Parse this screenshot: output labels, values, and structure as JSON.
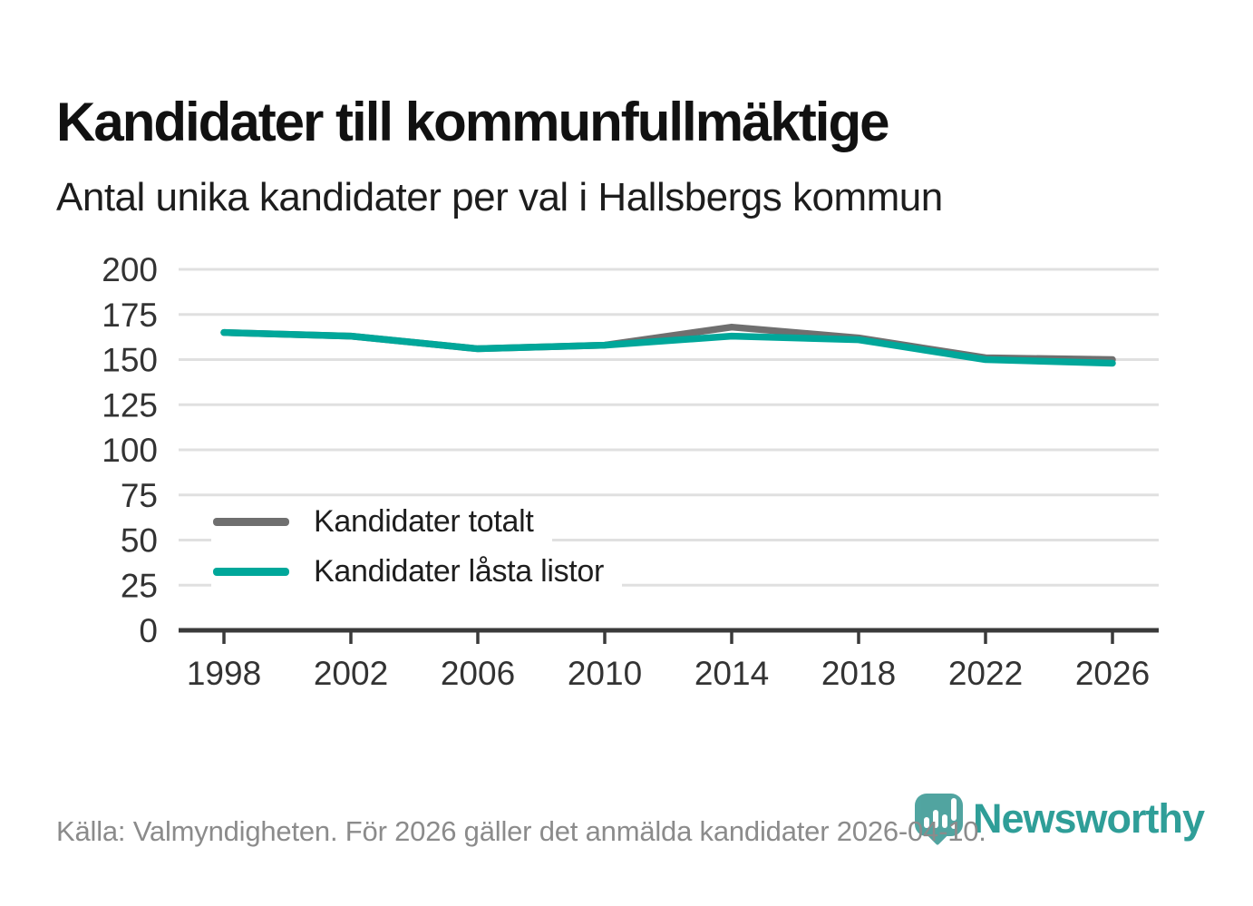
{
  "chart_data": {
    "type": "line",
    "title": "Kandidater till kommunfullmäktige",
    "subtitle": "Antal unika kandidater per val i Hallsbergs kommun",
    "x": [
      1998,
      2002,
      2006,
      2010,
      2014,
      2018,
      2022,
      2026
    ],
    "series": [
      {
        "name": "Kandidater totalt",
        "color": "#6f6f6f",
        "values": [
          165,
          163,
          156,
          158,
          168,
          162,
          151,
          150
        ]
      },
      {
        "name": "Kandidater låsta listor",
        "color": "#00a79a",
        "values": [
          165,
          163,
          156,
          158,
          163,
          161,
          150,
          148
        ]
      }
    ],
    "ylim": [
      0,
      200
    ],
    "yticks": [
      0,
      25,
      50,
      75,
      100,
      125,
      150,
      175,
      200
    ],
    "xticks": [
      1998,
      2002,
      2006,
      2010,
      2014,
      2018,
      2022,
      2026
    ],
    "grid": "horizontal-only",
    "legend_position": "inside-bottom-left"
  },
  "footer": {
    "source": "Källa: Valmyndigheten. För 2026 gäller det anmälda kandidater 2026-04-10."
  },
  "logo": {
    "text": "Newsworthy",
    "icon": "newsworthy-pin-barchart-icon",
    "color": "#2f9e98"
  },
  "colors": {
    "axis": "#3a3a3a",
    "gridline": "#e0e0e0",
    "tick_label": "#333333"
  }
}
